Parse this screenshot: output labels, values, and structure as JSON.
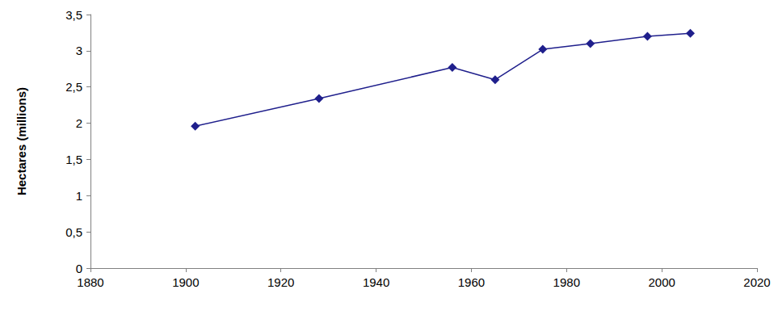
{
  "chart_data": {
    "type": "line",
    "y_label": "Hectares (millions)",
    "x": [
      1902,
      1928,
      1956,
      1965,
      1975,
      1985,
      1997,
      2006
    ],
    "values": [
      1.96,
      2.34,
      2.77,
      2.6,
      3.02,
      3.1,
      3.2,
      3.24
    ],
    "color": "#1f1f8c",
    "marker": "diamond",
    "xlim": [
      1880,
      2020
    ],
    "xticks": [
      1880,
      1900,
      1920,
      1940,
      1960,
      1980,
      2000,
      2020
    ],
    "ylim": [
      0,
      3.5
    ],
    "yticks": [
      0,
      {
        "value": 0.5,
        "label": "0,5"
      },
      1,
      {
        "value": 1.5,
        "label": "1,5"
      },
      2,
      {
        "value": 2.5,
        "label": "2,5"
      },
      3,
      {
        "value": 3.5,
        "label": "3,5"
      }
    ],
    "grid": false
  }
}
